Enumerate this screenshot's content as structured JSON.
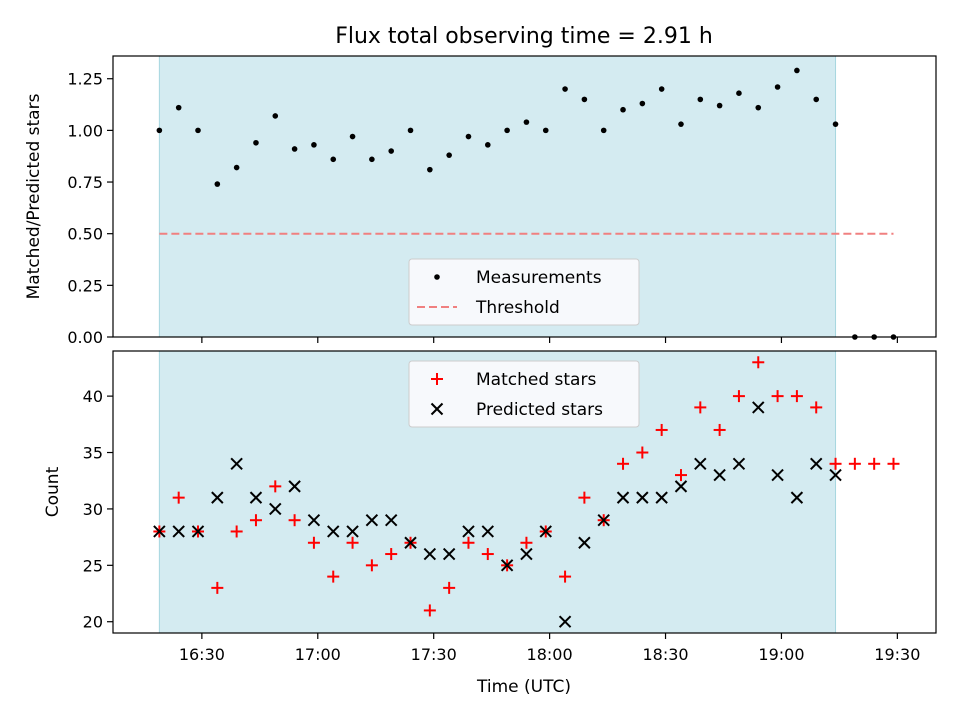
{
  "figure": {
    "title": "Flux total observing time = 2.91 h"
  },
  "chart_data": [
    {
      "type": "scatter",
      "ylabel": "Matched/Predicted stars",
      "x_time_minutes_ticks": [
        "16:30",
        "17:00",
        "17:30",
        "18:00",
        "18:30",
        "19:00",
        "19:30"
      ],
      "yticks": [
        "0.00",
        "0.25",
        "0.50",
        "0.75",
        "1.00",
        "1.25"
      ],
      "ylim": [
        0,
        1.36
      ],
      "observing_window": [
        "16:19",
        "19:14"
      ],
      "legend": {
        "placement": "lower-center",
        "entries": [
          "Measurements",
          "Threshold"
        ]
      },
      "threshold": {
        "name": "Threshold",
        "value": 0.5,
        "x_range": [
          "16:19",
          "19:29"
        ],
        "color": "#f08080"
      },
      "series": [
        {
          "name": "Measurements",
          "color": "#000000",
          "x": [
            "16:19",
            "16:24",
            "16:29",
            "16:34",
            "16:39",
            "16:44",
            "16:49",
            "16:54",
            "16:59",
            "17:04",
            "17:09",
            "17:14",
            "17:19",
            "17:24",
            "17:29",
            "17:34",
            "17:39",
            "17:44",
            "17:49",
            "17:54",
            "17:59",
            "18:04",
            "18:09",
            "18:14",
            "18:19",
            "18:24",
            "18:29",
            "18:34",
            "18:39",
            "18:44",
            "18:49",
            "18:54",
            "18:59",
            "19:04",
            "19:09",
            "19:14",
            "19:19",
            "19:24",
            "19:29"
          ],
          "values": [
            1.0,
            1.11,
            1.0,
            0.74,
            0.82,
            0.94,
            1.07,
            0.91,
            0.93,
            0.86,
            0.97,
            0.86,
            0.9,
            1.0,
            0.81,
            0.88,
            0.97,
            0.93,
            1.0,
            1.04,
            1.0,
            1.2,
            1.15,
            1.0,
            1.1,
            1.13,
            1.2,
            1.03,
            1.15,
            1.12,
            1.18,
            1.11,
            1.21,
            1.29,
            1.15,
            1.03,
            0.0,
            0.0,
            0.0
          ]
        }
      ]
    },
    {
      "type": "scatter",
      "xlabel": "Time (UTC)",
      "ylabel": "Count",
      "x_time_minutes_ticks": [
        "16:30",
        "17:00",
        "17:30",
        "18:00",
        "18:30",
        "19:00",
        "19:30"
      ],
      "yticks": [
        "20",
        "25",
        "30",
        "35",
        "40"
      ],
      "ylim": [
        19,
        44
      ],
      "observing_window": [
        "16:19",
        "19:14"
      ],
      "legend": {
        "placement": "upper-center",
        "entries": [
          "Matched stars",
          "Predicted stars"
        ]
      },
      "series": [
        {
          "name": "Matched stars",
          "marker": "plus",
          "color": "#ff0000",
          "x": [
            "16:19",
            "16:24",
            "16:29",
            "16:34",
            "16:39",
            "16:44",
            "16:49",
            "16:54",
            "16:59",
            "17:04",
            "17:09",
            "17:14",
            "17:19",
            "17:24",
            "17:29",
            "17:34",
            "17:39",
            "17:44",
            "17:49",
            "17:54",
            "17:59",
            "18:04",
            "18:09",
            "18:14",
            "18:19",
            "18:24",
            "18:29",
            "18:34",
            "18:39",
            "18:44",
            "18:49",
            "18:54",
            "18:59",
            "19:04",
            "19:09",
            "19:14",
            "19:19",
            "19:24",
            "19:29"
          ],
          "values": [
            28,
            31,
            28,
            23,
            28,
            29,
            32,
            29,
            27,
            24,
            27,
            25,
            26,
            27,
            21,
            23,
            27,
            26,
            25,
            27,
            28,
            24,
            31,
            29,
            34,
            35,
            37,
            33,
            39,
            37,
            40,
            43,
            40,
            40,
            39,
            34,
            34,
            34,
            34
          ]
        },
        {
          "name": "Predicted stars",
          "marker": "x",
          "color": "#000000",
          "x": [
            "16:19",
            "16:24",
            "16:29",
            "16:34",
            "16:39",
            "16:44",
            "16:49",
            "16:54",
            "16:59",
            "17:04",
            "17:09",
            "17:14",
            "17:19",
            "17:24",
            "17:29",
            "17:34",
            "17:39",
            "17:44",
            "17:49",
            "17:54",
            "17:59",
            "18:04",
            "18:09",
            "18:14",
            "18:19",
            "18:24",
            "18:29",
            "18:34",
            "18:39",
            "18:44",
            "18:49",
            "18:54",
            "18:59",
            "19:04",
            "19:09",
            "19:14"
          ],
          "values": [
            28,
            28,
            28,
            31,
            34,
            31,
            30,
            32,
            29,
            28,
            28,
            29,
            29,
            27,
            26,
            26,
            28,
            28,
            25,
            26,
            28,
            20,
            27,
            29,
            31,
            31,
            31,
            32,
            34,
            33,
            34,
            39,
            33,
            31,
            34,
            33
          ]
        }
      ]
    }
  ],
  "colors": {
    "window_fill": "#d4ebf1",
    "window_edge": "#a7d6e0",
    "legend_bg": "#f7f9fc"
  }
}
